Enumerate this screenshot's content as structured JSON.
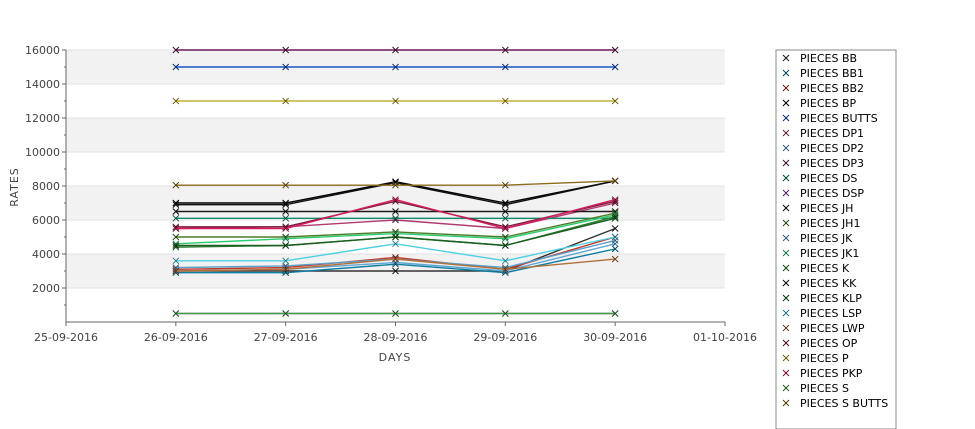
{
  "chart_data": {
    "type": "line",
    "xlabel": "DAYS",
    "ylabel": "RATES",
    "x_ticks": [
      "25-09-2016",
      "26-09-2016",
      "27-09-2016",
      "28-09-2016",
      "29-09-2016",
      "30-09-2016",
      "01-10-2016"
    ],
    "x": [
      "26-09-2016",
      "27-09-2016",
      "28-09-2016",
      "29-09-2016",
      "30-09-2016"
    ],
    "ylim": [
      0,
      16000
    ],
    "y_ticks": [
      2000,
      4000,
      6000,
      8000,
      10000,
      12000,
      14000,
      16000
    ],
    "grid": "alternating horizontal bands",
    "legend_position": "right",
    "series": [
      {
        "name": "PIECES BB",
        "color": "#333333",
        "values": [
          3000,
          3000,
          3000,
          3000,
          5500
        ]
      },
      {
        "name": "PIECES BB1",
        "color": "#0e7fa1",
        "values": [
          2900,
          2900,
          3400,
          2900,
          4300
        ]
      },
      {
        "name": "PIECES BB2",
        "color": "#c0392b",
        "values": [
          3100,
          3200,
          3800,
          3100,
          5000
        ]
      },
      {
        "name": "PIECES BP",
        "color": "#000000",
        "values": [
          7000,
          7000,
          8250,
          7000,
          8300
        ]
      },
      {
        "name": "PIECES BUTTS",
        "color": "#1a56c4",
        "values": [
          15000,
          15000,
          15000,
          15000,
          15000
        ]
      },
      {
        "name": "PIECES DP1",
        "color": "#b03a6e",
        "values": [
          5500,
          5600,
          6000,
          5500,
          7000
        ]
      },
      {
        "name": "PIECES DP2",
        "color": "#5aa0c8",
        "values": [
          3200,
          3300,
          3700,
          3200,
          4800
        ]
      },
      {
        "name": "PIECES DP3",
        "color": "#6a1b5a",
        "values": [
          16000,
          16000,
          16000,
          16000,
          16000
        ]
      },
      {
        "name": "PIECES DS",
        "color": "#0f8a6a",
        "values": [
          6100,
          6100,
          6100,
          6100,
          6100
        ]
      },
      {
        "name": "PIECES DSP",
        "color": "#8e44ad",
        "values": [
          500,
          500,
          500,
          500,
          500
        ]
      },
      {
        "name": "PIECES JH",
        "color": "#1c1c1c",
        "values": [
          6500,
          6500,
          6500,
          6500,
          6500
        ]
      },
      {
        "name": "PIECES JH1",
        "color": "#4e7d2a",
        "values": [
          5000,
          5000,
          5300,
          5000,
          6400
        ]
      },
      {
        "name": "PIECES JK",
        "color": "#5fa8d3",
        "values": [
          3000,
          3100,
          3500,
          3000,
          4600
        ]
      },
      {
        "name": "PIECES JK1",
        "color": "#2ecc71",
        "values": [
          4600,
          4900,
          5200,
          4900,
          6300
        ]
      },
      {
        "name": "PIECES K",
        "color": "#2e7d32",
        "values": [
          4400,
          4500,
          5000,
          4500,
          6200
        ]
      },
      {
        "name": "PIECES KK",
        "color": "#111111",
        "values": [
          6900,
          6900,
          8200,
          6900,
          8300
        ]
      },
      {
        "name": "PIECES KLP",
        "color": "#1b5e20",
        "values": [
          4500,
          4500,
          5000,
          4500,
          6100
        ]
      },
      {
        "name": "PIECES LSP",
        "color": "#4dd0e1",
        "values": [
          3600,
          3600,
          4600,
          3600,
          5000
        ]
      },
      {
        "name": "PIECES LWP",
        "color": "#b0703a",
        "values": [
          3000,
          3100,
          3700,
          3100,
          3700
        ]
      },
      {
        "name": "PIECES OP",
        "color": "#7b1f3a",
        "values": [
          5600,
          5600,
          7100,
          5600,
          7100
        ]
      },
      {
        "name": "PIECES P",
        "color": "#c2b030",
        "values": [
          13000,
          13000,
          13000,
          13000,
          13000
        ]
      },
      {
        "name": "PIECES PKP",
        "color": "#d81b60",
        "values": [
          5500,
          5500,
          7200,
          5500,
          7200
        ]
      },
      {
        "name": "PIECES S",
        "color": "#43a047",
        "values": [
          500,
          500,
          500,
          500,
          500
        ]
      },
      {
        "name": "PIECES S BUTTS",
        "color": "#8c6d1f",
        "values": [
          8050,
          8050,
          8050,
          8050,
          8300
        ]
      }
    ]
  }
}
